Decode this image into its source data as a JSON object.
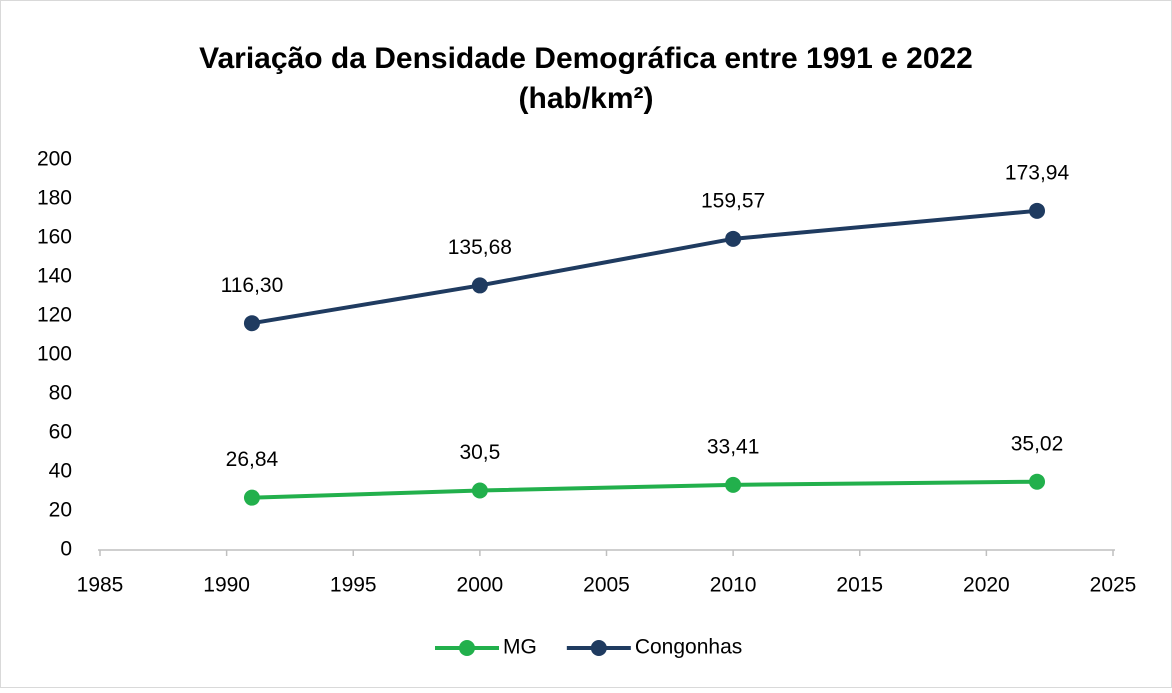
{
  "chart_data": {
    "type": "line",
    "title": [
      "Variação da Densidade Demográfica entre 1991 e 2022",
      "(hab/km²)"
    ],
    "x": [
      1991,
      2000,
      2010,
      2022
    ],
    "series": [
      {
        "name": "MG",
        "color": "#22b04c",
        "values": [
          26.84,
          30.5,
          33.41,
          35.02
        ],
        "value_labels": [
          "26,84",
          "30,5",
          "33,41",
          "35,02"
        ]
      },
      {
        "name": "Congonhas",
        "color": "#1f3b60",
        "values": [
          116.3,
          135.68,
          159.57,
          173.94
        ],
        "value_labels": [
          "116,30",
          "135,68",
          "159,57",
          "173,94"
        ]
      }
    ],
    "xlim": [
      1985,
      2025
    ],
    "xticks": [
      1985,
      1990,
      1995,
      2000,
      2005,
      2010,
      2015,
      2020,
      2025
    ],
    "ylim": [
      0,
      200
    ],
    "yticks": [
      0,
      20,
      40,
      60,
      80,
      100,
      120,
      140,
      160,
      180,
      200
    ],
    "grid": false,
    "legend": "bottom"
  }
}
